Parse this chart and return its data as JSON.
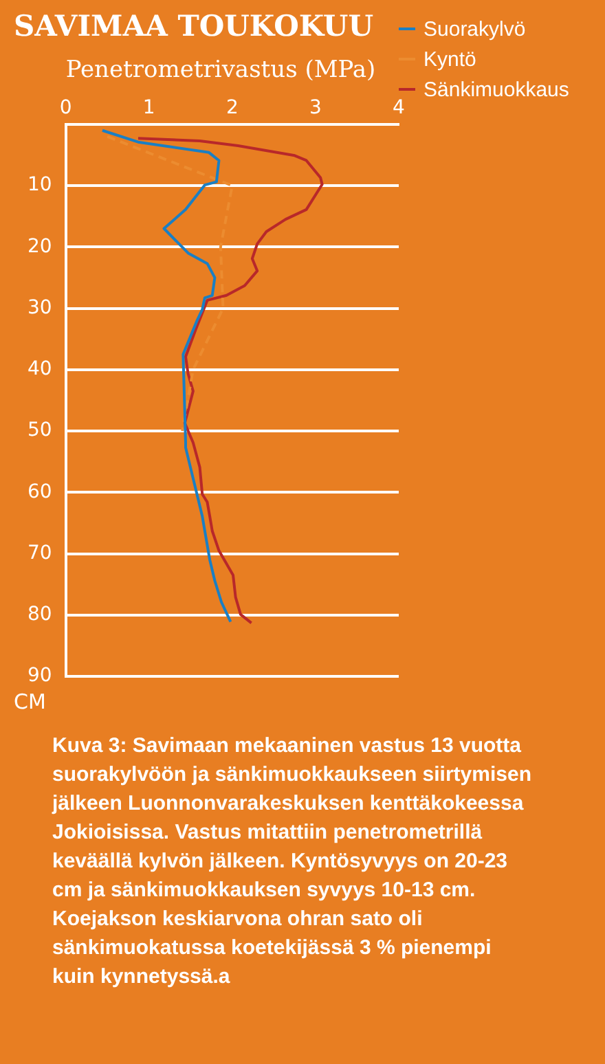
{
  "chart_data": {
    "type": "line",
    "title": "SAVIMAA TOUKOKUU",
    "xlabel": "Penetrometrivastus (MPa)",
    "ylabel": "CM",
    "xlim": [
      0,
      4
    ],
    "xticks": [
      0,
      1,
      2,
      3,
      4
    ],
    "ylim": [
      90,
      0
    ],
    "yticks": [
      10,
      20,
      30,
      40,
      50,
      60,
      70,
      80,
      90
    ],
    "grid": "y",
    "legend": "right",
    "marker": "none",
    "series": [
      {
        "name": "Suorakylvö",
        "color": "#1a7fc4",
        "x": [
          0.44,
          0.87,
          1.72,
          1.84,
          1.81,
          1.67,
          1.44,
          1.18,
          1.47,
          1.7,
          1.79,
          1.76,
          1.67,
          1.64,
          1.58,
          1.41,
          1.44,
          1.44,
          1.64,
          1.73,
          1.79,
          1.87,
          1.98
        ],
        "values": [
          1,
          2.9,
          4.6,
          5.9,
          9.4,
          9.9,
          13.9,
          17,
          21,
          22.7,
          25,
          27.9,
          28.3,
          30.2,
          31.9,
          37.5,
          51.9,
          52.7,
          63.9,
          71,
          74.4,
          77.9,
          81.1
        ]
      },
      {
        "name": "Kyntö",
        "color": "#ec8c30",
        "line_style": "dashed",
        "x": [
          0.5,
          2.0,
          1.86,
          1.89,
          1.53,
          1.4
        ],
        "values": [
          2,
          10,
          20,
          30,
          40,
          50
        ]
      },
      {
        "name": "Sänkimuokkaus",
        "color": "#b8282a",
        "x": [
          0.87,
          1.61,
          2.07,
          2.75,
          2.89,
          3.06,
          3.08,
          2.89,
          2.64,
          2.41,
          2.3,
          2.24,
          2.3,
          2.15,
          1.93,
          1.7,
          1.56,
          1.44,
          1.47,
          1.53,
          1.43,
          1.53,
          1.61,
          1.64,
          1.7,
          1.73,
          1.76,
          1.84,
          2.01,
          2.04,
          2.1,
          2.23
        ],
        "values": [
          2.3,
          2.7,
          3.5,
          5.1,
          5.9,
          8.7,
          9.8,
          13.9,
          15.5,
          17.5,
          19.5,
          21.9,
          23.9,
          26.3,
          27.9,
          28.7,
          33.5,
          37.9,
          40.7,
          43.5,
          48.7,
          51.9,
          55.9,
          60.3,
          61.6,
          63.9,
          66.3,
          69.5,
          73.5,
          77.1,
          79.9,
          81.3
        ]
      }
    ],
    "annotations": [
      "Kuva 3: Savimaan mekaaninen vastus 13 vuotta suorakylvöön ja sänkimuokkaukseen siirtymisen jälkeen Luonnonvarakeskuksen kenttäkokeessa Jokioisissa. Vastus mitattiin penetrometrillä keväällä kylvön jälkeen. Kyntösyvyys on 20-23 cm ja sänkimuokkauksen syvyys 10-13 cm. Koejakson keskiarvona ohran sato oli sänkimuokatussa koetekijässä 3 % pienempi kuin kynnetyssä.a"
    ]
  }
}
